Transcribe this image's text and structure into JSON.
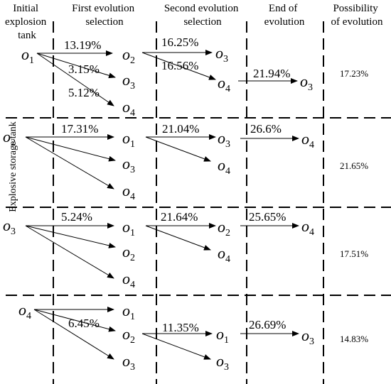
{
  "headers": {
    "initial": [
      "Initial",
      "explosion",
      "tank"
    ],
    "first": [
      "First evolution",
      "selection"
    ],
    "second": [
      "Second evolution",
      "selection"
    ],
    "end": [
      "End of",
      "evolution"
    ],
    "possibility": [
      "Possibility",
      "of evolution"
    ]
  },
  "side_label": "Explosive storage tank",
  "node_letter": "o",
  "blocks": [
    {
      "nodes": {
        "root": "1",
        "f1": "2",
        "f2": "3",
        "f3": "4",
        "s1": "3",
        "s2": "4",
        "e1": "3"
      },
      "percents": {
        "p1": "13.19%",
        "p2": "3.15%",
        "p3": "5.12%",
        "p4": "16.25%",
        "p5": "16.56%",
        "p6": "21.94%"
      },
      "possibility": "17.23%"
    },
    {
      "nodes": {
        "root": "2",
        "f1": "1",
        "f2": "3",
        "f3": "4",
        "s1": "3",
        "s2": "4",
        "e1": "4"
      },
      "percents": {
        "p1": "17.31%",
        "p2": "21.04%",
        "p3": "26.6%"
      },
      "possibility": "21.65%"
    },
    {
      "nodes": {
        "root": "3",
        "f1": "1",
        "f2": "2",
        "f3": "4",
        "s1": "2",
        "s2": "4",
        "e1": "4"
      },
      "percents": {
        "p1": "5.24%",
        "p2": "21.64%",
        "p3": "25.65%"
      },
      "possibility": "17.51%"
    },
    {
      "nodes": {
        "root": "4",
        "f1": "1",
        "f2": "2",
        "f3": "3",
        "s1": "1",
        "s2": "3",
        "e1": "3"
      },
      "percents": {
        "p1": "6.45%",
        "p2": "11.35%",
        "p3": "26.69%"
      },
      "possibility": "14.83%"
    }
  ]
}
